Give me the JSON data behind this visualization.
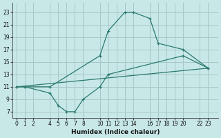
{
  "xlabel": "Humidex (Indice chaleur)",
  "background_color": "#c8e8e8",
  "line_color": "#2a7a6a",
  "grid_color": "#a8c8c8",
  "xticks": [
    0,
    1,
    2,
    4,
    5,
    6,
    7,
    8,
    10,
    11,
    12,
    13,
    14,
    16,
    17,
    18,
    19,
    20,
    22,
    23
  ],
  "yticks": [
    7,
    9,
    11,
    13,
    15,
    17,
    19,
    21,
    23
  ],
  "xlim": [
    -0.5,
    24.2
  ],
  "ylim": [
    6.0,
    24.5
  ],
  "line1_x": [
    0,
    1,
    4,
    10,
    11,
    13,
    14,
    16,
    17,
    20,
    23
  ],
  "line1_y": [
    11,
    11,
    11,
    16,
    20,
    23,
    23,
    22,
    18,
    17,
    14
  ],
  "line2_x": [
    0,
    1,
    4,
    5,
    6,
    7,
    8,
    10,
    11,
    20,
    23
  ],
  "line2_y": [
    11,
    11,
    10,
    8,
    7,
    7,
    9,
    11,
    13,
    16,
    14
  ],
  "line3_x": [
    0,
    23
  ],
  "line3_y": [
    11,
    14
  ]
}
